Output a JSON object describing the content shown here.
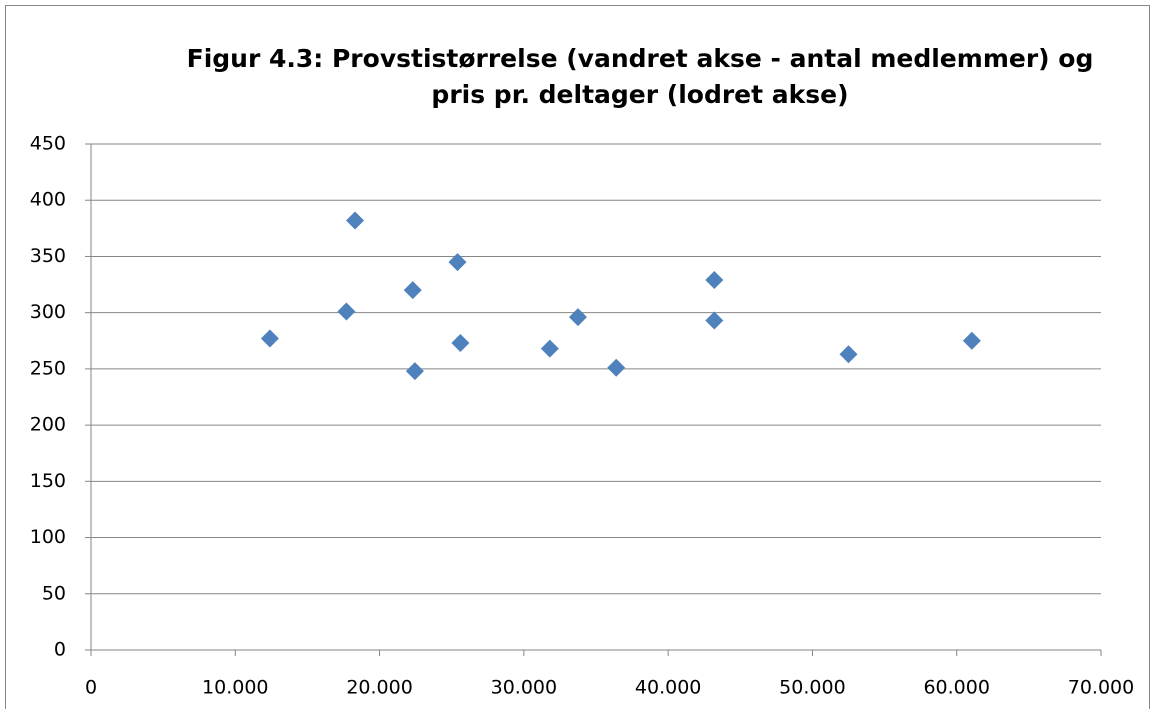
{
  "chart_data": {
    "type": "scatter",
    "title": [
      "Figur 4.3: Provstistørrelse (vandret akse - antal medlemmer) og",
      "pris pr. deltager (lodret akse)"
    ],
    "x": [
      12400,
      18300,
      17700,
      22300,
      22450,
      25400,
      25600,
      31800,
      33750,
      36400,
      43200,
      43200,
      52500,
      61050
    ],
    "values": [
      277,
      382,
      301,
      320,
      248,
      345,
      273,
      268,
      296,
      251,
      329,
      293,
      263,
      275
    ],
    "color": "#4f81bd",
    "xlim": [
      0,
      70000
    ],
    "xticks": [
      0,
      {
        "value": 10000,
        "label": "10.000"
      },
      {
        "value": 20000,
        "label": "20.000"
      },
      {
        "value": 30000,
        "label": "30.000"
      },
      {
        "value": 40000,
        "label": "40.000"
      },
      {
        "value": 50000,
        "label": "50.000"
      },
      {
        "value": 60000,
        "label": "60.000"
      },
      {
        "value": 70000,
        "label": "70.000"
      }
    ],
    "ylim": [
      0,
      450
    ],
    "yticks": [
      0,
      50,
      100,
      150,
      200,
      250,
      300,
      350,
      400,
      450
    ],
    "grid": true
  }
}
